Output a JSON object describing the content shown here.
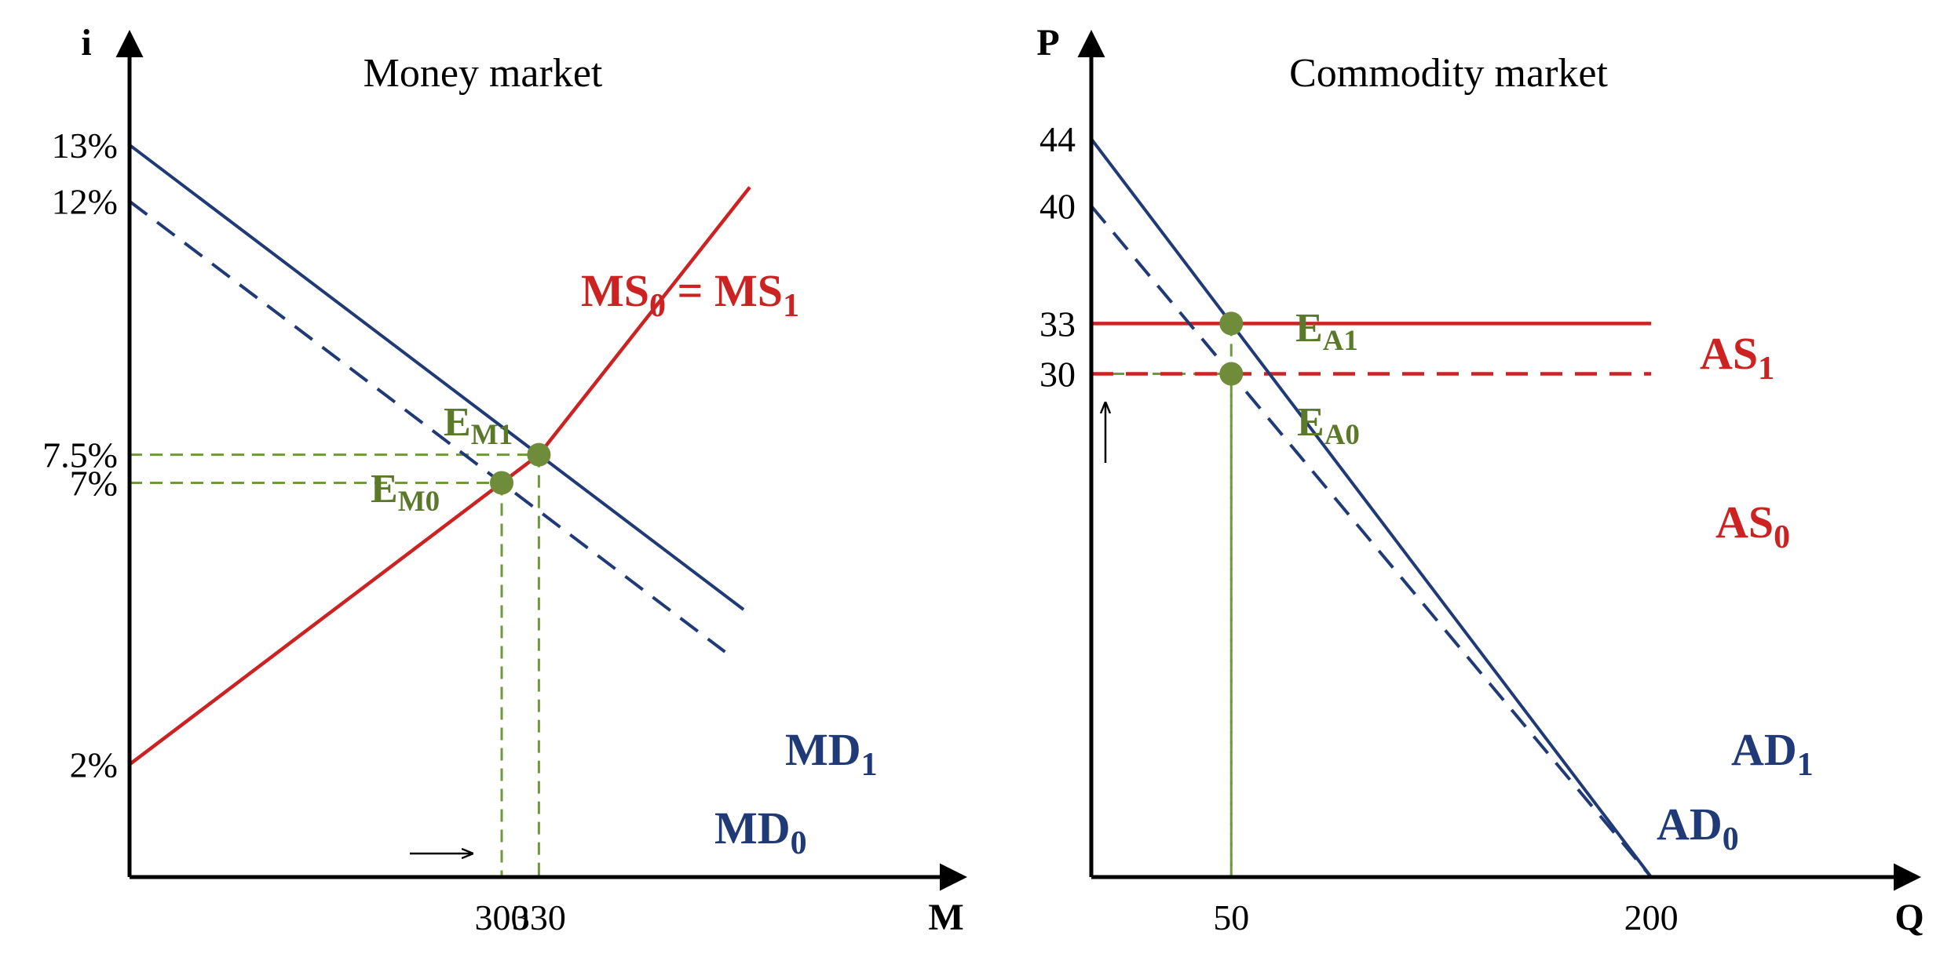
{
  "colors": {
    "axis": "#000000",
    "demand": "#1f3a77",
    "supply": "#cc2222",
    "guide": "#6e9a3c",
    "point": "#6e8c3a",
    "label_green": "#5a7a2a",
    "label_blue": "#1f3a77",
    "label_red": "#cc2222"
  },
  "chart_data": [
    {
      "type": "line",
      "title": "Money market",
      "xlabel": "M",
      "ylabel": "i",
      "xlim": [
        0,
        500
      ],
      "ylim": [
        0,
        14
      ],
      "x_ticks": [
        {
          "value": 300,
          "label": "300"
        },
        {
          "value": 330,
          "label": "330"
        }
      ],
      "y_ticks": [
        {
          "value": 13,
          "label": "13%"
        },
        {
          "value": 12,
          "label": "12%"
        },
        {
          "value": 7.5,
          "label": "7.5%"
        },
        {
          "value": 7,
          "label": "7%"
        },
        {
          "value": 2,
          "label": "2%"
        }
      ],
      "series": [
        {
          "name": "MS0 = MS1",
          "label_main": "MS",
          "label_sub0": "0",
          "label_mid": " = MS",
          "label_sub1": "1",
          "style": "solid",
          "color": "supply",
          "points": [
            [
              0,
              2
            ],
            [
              330,
              7.5
            ],
            [
              500,
              12.25
            ]
          ]
        },
        {
          "name": "MD1",
          "label_main": "MD",
          "label_sub": "1",
          "style": "solid",
          "color": "demand",
          "points": [
            [
              0,
              13
            ],
            [
              330,
              7.5
            ],
            [
              495,
              4.75
            ]
          ]
        },
        {
          "name": "MD0",
          "label_main": "MD",
          "label_sub": "0",
          "style": "dashed",
          "color": "demand",
          "points": [
            [
              0,
              12
            ],
            [
              300,
              7
            ],
            [
              480,
              4
            ]
          ]
        }
      ],
      "points": [
        {
          "name": "EM1",
          "label_main": "E",
          "label_sub": "M1",
          "x": 330,
          "y": 7.5
        },
        {
          "name": "EM0",
          "label_main": "E",
          "label_sub": "M0",
          "x": 300,
          "y": 7
        }
      ],
      "annotations": [
        {
          "type": "arrow",
          "from_x": 300,
          "to_x": 330
        }
      ]
    },
    {
      "type": "line",
      "title": "Commodity market",
      "xlabel": "Q",
      "ylabel": "P",
      "xlim": [
        0,
        260
      ],
      "ylim": [
        0,
        47
      ],
      "x_ticks": [
        {
          "value": 50,
          "label": "50"
        },
        {
          "value": 200,
          "label": "200"
        }
      ],
      "y_ticks": [
        {
          "value": 44,
          "label": "44"
        },
        {
          "value": 40,
          "label": "40"
        },
        {
          "value": 33,
          "label": "33"
        },
        {
          "value": 30,
          "label": "30"
        }
      ],
      "series": [
        {
          "name": "AS1",
          "label_main": "AS",
          "label_sub": "1",
          "style": "solid",
          "color": "supply",
          "points": [
            [
              0,
              33
            ],
            [
              200,
              33
            ]
          ]
        },
        {
          "name": "AS0",
          "label_main": "AS",
          "label_sub": "0",
          "style": "dashed",
          "color": "supply",
          "points": [
            [
              0,
              30
            ],
            [
              200,
              30
            ]
          ]
        },
        {
          "name": "AD1",
          "label_main": "AD",
          "label_sub": "1",
          "style": "solid",
          "color": "demand",
          "points": [
            [
              0,
              44
            ],
            [
              200,
              0
            ]
          ]
        },
        {
          "name": "AD0",
          "label_main": "AD",
          "label_sub": "0",
          "style": "dashed",
          "color": "demand",
          "points": [
            [
              0,
              40
            ],
            [
              200,
              0
            ]
          ]
        }
      ],
      "points": [
        {
          "name": "EA1",
          "label_main": "E",
          "label_sub": "A1",
          "x": 50,
          "y": 33
        },
        {
          "name": "EA0",
          "label_main": "E",
          "label_sub": "A0",
          "x": 50,
          "y": 30
        }
      ],
      "annotations": [
        {
          "type": "arrow",
          "from_y": 30,
          "to_y": 33
        }
      ]
    }
  ]
}
